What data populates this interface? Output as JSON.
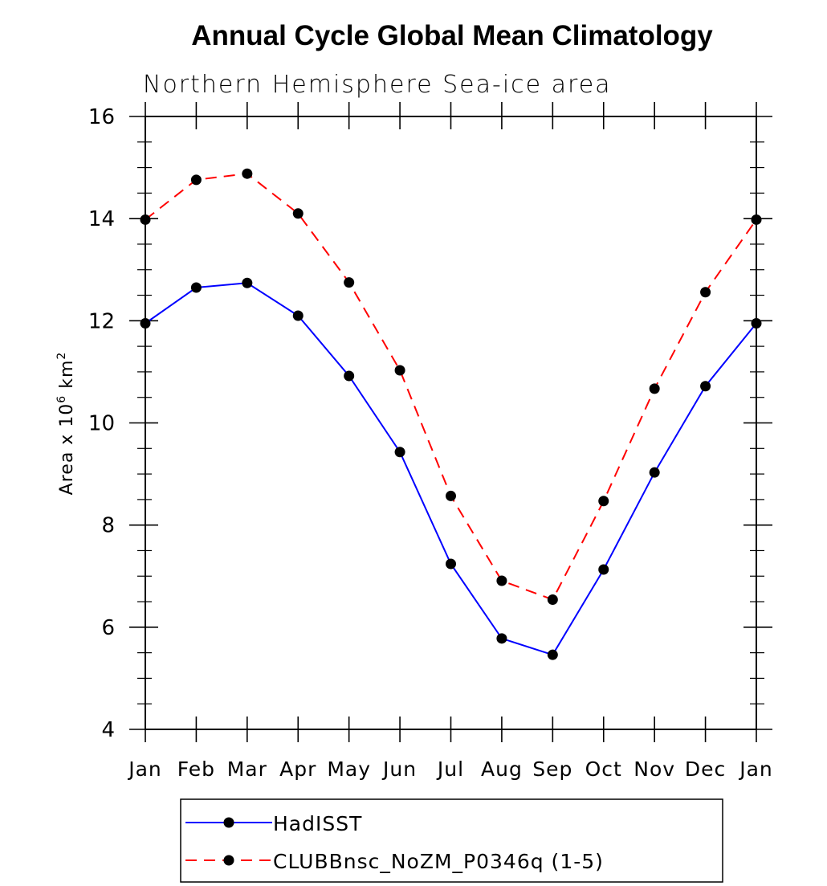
{
  "title": "Annual Cycle Global Mean Climatology",
  "chart_data": {
    "type": "line",
    "title": "Annual Cycle Global Mean Climatology",
    "subtitle": "Northern Hemisphere Sea-ice area",
    "xlabel": "",
    "ylabel": "Area x 10",
    "ylabel_exponent": "6",
    "ylabel_unit": "km",
    "ylabel_unit_exponent": "2",
    "categories": [
      "Jan",
      "Feb",
      "Mar",
      "Apr",
      "May",
      "Jun",
      "Jul",
      "Aug",
      "Sep",
      "Oct",
      "Nov",
      "Dec",
      "Jan"
    ],
    "yticks": [
      "4",
      "6",
      "8",
      "10",
      "12",
      "14",
      "16"
    ],
    "ylim": [
      4,
      16
    ],
    "grid": false,
    "legend_position": "bottom",
    "series": [
      {
        "name": "HadISST",
        "color": "#0000ff",
        "dashed": false,
        "values": [
          11.95,
          12.65,
          12.74,
          12.1,
          10.92,
          9.43,
          7.24,
          5.78,
          5.46,
          7.13,
          9.03,
          10.72,
          11.95
        ]
      },
      {
        "name": "CLUBBnsc_NoZM_P0346q (1-5)",
        "color": "#ff0000",
        "dashed": true,
        "values": [
          13.98,
          14.76,
          14.88,
          14.1,
          12.75,
          11.03,
          8.57,
          6.91,
          6.54,
          8.47,
          10.67,
          12.56,
          13.98
        ]
      }
    ]
  }
}
